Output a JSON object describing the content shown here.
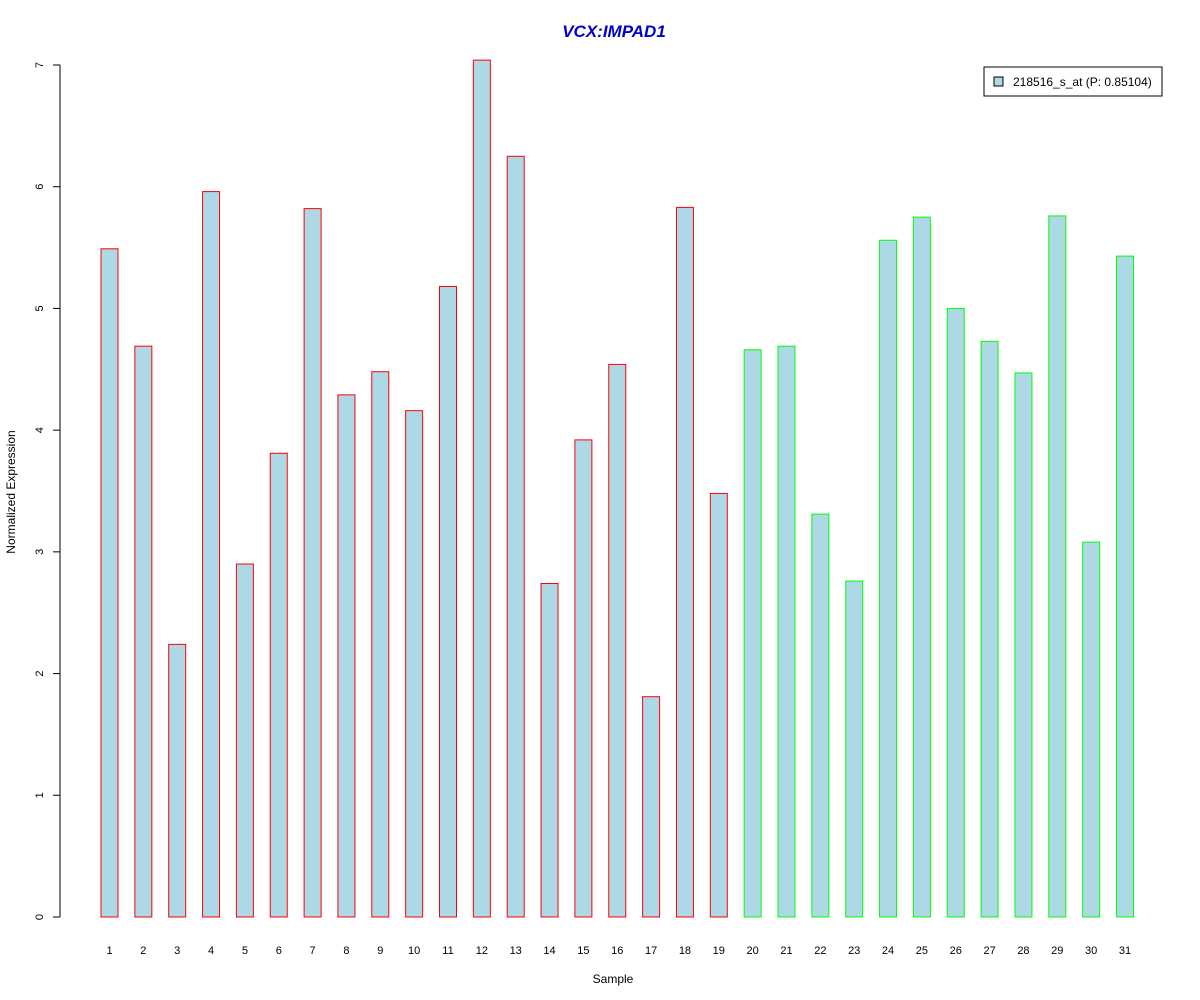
{
  "chart_data": {
    "type": "bar",
    "title": "VCX:IMPAD1",
    "xlabel": "Sample",
    "ylabel": "Normalized Expression",
    "ylim": [
      0,
      7
    ],
    "yticks": [
      0,
      1,
      2,
      3,
      4,
      5,
      6,
      7
    ],
    "grid": false,
    "legend_position": "top-right",
    "categories": [
      "1",
      "2",
      "3",
      "4",
      "5",
      "6",
      "7",
      "8",
      "9",
      "10",
      "11",
      "12",
      "13",
      "14",
      "15",
      "16",
      "17",
      "18",
      "19",
      "20",
      "21",
      "22",
      "23",
      "24",
      "25",
      "26",
      "27",
      "28",
      "29",
      "30",
      "31"
    ],
    "series": [
      {
        "name": "218516_s_at (P: 0.85104)",
        "values": [
          5.49,
          4.69,
          2.24,
          5.96,
          2.9,
          3.81,
          5.82,
          4.29,
          4.48,
          4.16,
          5.18,
          7.04,
          6.25,
          2.74,
          3.92,
          4.54,
          1.81,
          5.83,
          3.48,
          4.66,
          4.69,
          3.31,
          2.76,
          5.56,
          5.75,
          5.0,
          4.73,
          4.47,
          5.76,
          3.08,
          5.43
        ]
      }
    ],
    "groups": [
      {
        "samples": [
          1,
          19
        ],
        "border_color": "#ff0000"
      },
      {
        "samples": [
          20,
          31
        ],
        "border_color": "#00ff00"
      }
    ],
    "colors": {
      "bar_fill": "#add8e6",
      "title": "#0000cd",
      "axis": "#000000"
    }
  }
}
